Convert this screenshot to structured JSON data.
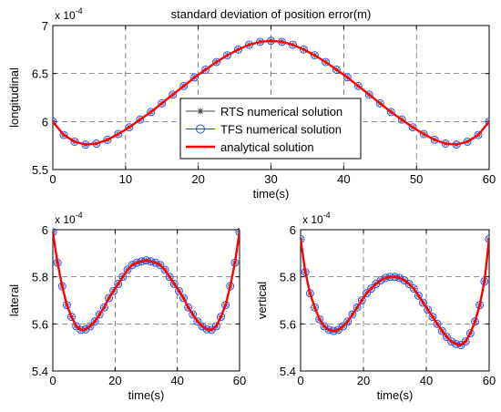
{
  "figure": {
    "background": "#ffffff"
  },
  "chart_data": [
    {
      "type": "line",
      "title": "standard deviation of position error(m)",
      "xlabel": "time(s)",
      "ylabel": "longitudinal",
      "exponent_label": "x 10",
      "exponent_power": "-4",
      "xlim": [
        0,
        60
      ],
      "ylim": [
        5.5,
        7
      ],
      "xticks": [
        0,
        10,
        20,
        30,
        40,
        50,
        60
      ],
      "yticks": [
        5.5,
        6,
        6.5,
        7
      ],
      "ytick_labels": [
        "5.5",
        "6",
        "6.5",
        "7"
      ],
      "grid": true,
      "legend_position": "center",
      "legend": [
        {
          "label": "RTS numerical solution",
          "color": "#444444",
          "marker": "asterisk"
        },
        {
          "label": "TFS numerical solution",
          "color": "#1f3fff",
          "marker": "circle"
        },
        {
          "label": "analytical solution",
          "color": "#ff0000",
          "marker": "none"
        }
      ],
      "series": [
        {
          "name": "RTS numerical solution",
          "color": "#444444",
          "x": [
            0,
            1.5,
            3,
            4.5,
            6,
            7.5,
            9,
            10.5,
            12,
            13.5,
            15,
            16.5,
            18,
            19.5,
            21,
            22.5,
            24,
            25.5,
            27,
            28.5,
            30,
            31.5,
            33,
            34.5,
            36,
            37.5,
            39,
            40.5,
            42,
            43.5,
            45,
            46.5,
            48,
            49.5,
            51,
            52.5,
            54,
            55.5,
            57,
            58.5,
            60
          ],
          "y": [
            6.0,
            5.86,
            5.79,
            5.76,
            5.77,
            5.81,
            5.87,
            5.94,
            6.02,
            6.1,
            6.19,
            6.28,
            6.37,
            6.46,
            6.54,
            6.62,
            6.69,
            6.75,
            6.8,
            6.83,
            6.84,
            6.83,
            6.8,
            6.75,
            6.69,
            6.62,
            6.54,
            6.46,
            6.37,
            6.28,
            6.19,
            6.1,
            6.02,
            5.94,
            5.87,
            5.81,
            5.77,
            5.76,
            5.79,
            5.86,
            6.0
          ]
        },
        {
          "name": "TFS numerical solution",
          "color": "#1f3fff",
          "x": [
            0,
            1.5,
            3,
            4.5,
            6,
            7.5,
            9,
            10.5,
            12,
            13.5,
            15,
            16.5,
            18,
            19.5,
            21,
            22.5,
            24,
            25.5,
            27,
            28.5,
            30,
            31.5,
            33,
            34.5,
            36,
            37.5,
            39,
            40.5,
            42,
            43.5,
            45,
            46.5,
            48,
            49.5,
            51,
            52.5,
            54,
            55.5,
            57,
            58.5,
            60
          ],
          "y": [
            6.0,
            5.86,
            5.79,
            5.76,
            5.77,
            5.81,
            5.87,
            5.94,
            6.02,
            6.1,
            6.19,
            6.28,
            6.37,
            6.46,
            6.54,
            6.62,
            6.69,
            6.75,
            6.8,
            6.83,
            6.84,
            6.83,
            6.8,
            6.75,
            6.69,
            6.62,
            6.54,
            6.46,
            6.37,
            6.28,
            6.19,
            6.1,
            6.02,
            5.94,
            5.87,
            5.81,
            5.77,
            5.76,
            5.79,
            5.86,
            6.0
          ]
        },
        {
          "name": "analytical solution",
          "color": "#ff0000",
          "x": [
            0,
            1.5,
            3,
            4.5,
            6,
            7.5,
            9,
            10.5,
            12,
            13.5,
            15,
            16.5,
            18,
            19.5,
            21,
            22.5,
            24,
            25.5,
            27,
            28.5,
            30,
            31.5,
            33,
            34.5,
            36,
            37.5,
            39,
            40.5,
            42,
            43.5,
            45,
            46.5,
            48,
            49.5,
            51,
            52.5,
            54,
            55.5,
            57,
            58.5,
            60
          ],
          "y": [
            6.0,
            5.86,
            5.79,
            5.76,
            5.77,
            5.81,
            5.87,
            5.94,
            6.02,
            6.1,
            6.19,
            6.28,
            6.37,
            6.46,
            6.54,
            6.62,
            6.69,
            6.75,
            6.8,
            6.83,
            6.84,
            6.83,
            6.8,
            6.75,
            6.69,
            6.62,
            6.54,
            6.46,
            6.37,
            6.28,
            6.19,
            6.1,
            6.02,
            5.94,
            5.87,
            5.81,
            5.77,
            5.76,
            5.79,
            5.86,
            6.0
          ]
        }
      ]
    },
    {
      "type": "line",
      "title": "",
      "xlabel": "time(s)",
      "ylabel": "lateral",
      "exponent_label": "x 10",
      "exponent_power": "-4",
      "xlim": [
        0,
        60
      ],
      "ylim": [
        5.4,
        6
      ],
      "xticks": [
        0,
        20,
        40,
        60
      ],
      "yticks": [
        5.4,
        5.6,
        5.8,
        6
      ],
      "ytick_labels": [
        "5.4",
        "5.6",
        "5.8",
        "6"
      ],
      "grid": true,
      "series": [
        {
          "name": "RTS numerical solution",
          "color": "#444444",
          "x": [
            0,
            1.5,
            3,
            4.5,
            6,
            7.5,
            9,
            10.5,
            12,
            13.5,
            15,
            16.5,
            18,
            19.5,
            21,
            22.5,
            24,
            25.5,
            27,
            28.5,
            30,
            31.5,
            33,
            34.5,
            36,
            37.5,
            39,
            40.5,
            42,
            43.5,
            45,
            46.5,
            48,
            49.5,
            51,
            52.5,
            54,
            55.5,
            57,
            58.5,
            60
          ],
          "y": [
            5.99,
            5.86,
            5.76,
            5.68,
            5.63,
            5.59,
            5.575,
            5.577,
            5.59,
            5.61,
            5.64,
            5.67,
            5.71,
            5.74,
            5.77,
            5.8,
            5.83,
            5.85,
            5.86,
            5.865,
            5.87,
            5.865,
            5.86,
            5.85,
            5.83,
            5.8,
            5.77,
            5.74,
            5.71,
            5.67,
            5.64,
            5.61,
            5.59,
            5.577,
            5.575,
            5.59,
            5.63,
            5.68,
            5.76,
            5.86,
            5.99
          ]
        },
        {
          "name": "TFS numerical solution",
          "color": "#1f3fff",
          "x": [
            0,
            1.5,
            3,
            4.5,
            6,
            7.5,
            9,
            10.5,
            12,
            13.5,
            15,
            16.5,
            18,
            19.5,
            21,
            22.5,
            24,
            25.5,
            27,
            28.5,
            30,
            31.5,
            33,
            34.5,
            36,
            37.5,
            39,
            40.5,
            42,
            43.5,
            45,
            46.5,
            48,
            49.5,
            51,
            52.5,
            54,
            55.5,
            57,
            58.5,
            60
          ],
          "y": [
            5.99,
            5.86,
            5.76,
            5.68,
            5.63,
            5.59,
            5.575,
            5.577,
            5.59,
            5.61,
            5.64,
            5.67,
            5.71,
            5.74,
            5.77,
            5.8,
            5.83,
            5.85,
            5.86,
            5.865,
            5.87,
            5.865,
            5.86,
            5.85,
            5.83,
            5.8,
            5.77,
            5.74,
            5.71,
            5.67,
            5.64,
            5.61,
            5.59,
            5.577,
            5.575,
            5.59,
            5.63,
            5.68,
            5.76,
            5.86,
            5.99
          ]
        },
        {
          "name": "analytical solution",
          "color": "#ff0000",
          "x": [
            0,
            1.5,
            3,
            4.5,
            6,
            7.5,
            9,
            10.5,
            12,
            13.5,
            15,
            16.5,
            18,
            19.5,
            21,
            22.5,
            24,
            25.5,
            27,
            28.5,
            30,
            31.5,
            33,
            34.5,
            36,
            37.5,
            39,
            40.5,
            42,
            43.5,
            45,
            46.5,
            48,
            49.5,
            51,
            52.5,
            54,
            55.5,
            57,
            58.5,
            60
          ],
          "y": [
            5.99,
            5.86,
            5.76,
            5.68,
            5.63,
            5.59,
            5.575,
            5.577,
            5.59,
            5.61,
            5.64,
            5.67,
            5.71,
            5.74,
            5.77,
            5.8,
            5.83,
            5.85,
            5.86,
            5.865,
            5.87,
            5.865,
            5.86,
            5.85,
            5.83,
            5.8,
            5.77,
            5.74,
            5.71,
            5.67,
            5.64,
            5.61,
            5.59,
            5.577,
            5.575,
            5.59,
            5.63,
            5.68,
            5.76,
            5.86,
            5.99
          ]
        }
      ]
    },
    {
      "type": "line",
      "title": "",
      "xlabel": "time(s)",
      "ylabel": "vertical",
      "exponent_label": "x 10",
      "exponent_power": "-4",
      "xlim": [
        0,
        60
      ],
      "ylim": [
        5.4,
        6
      ],
      "xticks": [
        0,
        20,
        40,
        60
      ],
      "yticks": [
        5.4,
        5.6,
        5.8,
        6
      ],
      "ytick_labels": [
        "5.4",
        "5.6",
        "5.8",
        "6"
      ],
      "grid": true,
      "series": [
        {
          "name": "RTS numerical solution",
          "color": "#444444",
          "x": [
            0,
            1.5,
            3,
            4.5,
            6,
            7.5,
            9,
            10.5,
            12,
            13.5,
            15,
            16.5,
            18,
            19.5,
            21,
            22.5,
            24,
            25.5,
            27,
            28.5,
            30,
            31.5,
            33,
            34.5,
            36,
            37.5,
            39,
            40.5,
            42,
            43.5,
            45,
            46.5,
            48,
            49.5,
            51,
            52.5,
            54,
            55.5,
            57,
            58.5,
            60
          ],
          "y": [
            5.96,
            5.82,
            5.73,
            5.67,
            5.62,
            5.59,
            5.575,
            5.57,
            5.575,
            5.59,
            5.61,
            5.64,
            5.67,
            5.7,
            5.73,
            5.75,
            5.77,
            5.785,
            5.795,
            5.8,
            5.8,
            5.795,
            5.785,
            5.77,
            5.75,
            5.72,
            5.69,
            5.66,
            5.63,
            5.6,
            5.57,
            5.545,
            5.525,
            5.515,
            5.51,
            5.525,
            5.56,
            5.61,
            5.68,
            5.78,
            5.96
          ]
        },
        {
          "name": "TFS numerical solution",
          "color": "#1f3fff",
          "x": [
            0,
            1.5,
            3,
            4.5,
            6,
            7.5,
            9,
            10.5,
            12,
            13.5,
            15,
            16.5,
            18,
            19.5,
            21,
            22.5,
            24,
            25.5,
            27,
            28.5,
            30,
            31.5,
            33,
            34.5,
            36,
            37.5,
            39,
            40.5,
            42,
            43.5,
            45,
            46.5,
            48,
            49.5,
            51,
            52.5,
            54,
            55.5,
            57,
            58.5,
            60
          ],
          "y": [
            5.96,
            5.82,
            5.73,
            5.67,
            5.62,
            5.59,
            5.575,
            5.57,
            5.575,
            5.59,
            5.61,
            5.64,
            5.67,
            5.7,
            5.73,
            5.75,
            5.77,
            5.785,
            5.795,
            5.8,
            5.8,
            5.795,
            5.785,
            5.77,
            5.75,
            5.72,
            5.69,
            5.66,
            5.63,
            5.6,
            5.57,
            5.545,
            5.525,
            5.515,
            5.51,
            5.525,
            5.56,
            5.61,
            5.68,
            5.78,
            5.96
          ]
        },
        {
          "name": "analytical solution",
          "color": "#ff0000",
          "x": [
            0,
            1.5,
            3,
            4.5,
            6,
            7.5,
            9,
            10.5,
            12,
            13.5,
            15,
            16.5,
            18,
            19.5,
            21,
            22.5,
            24,
            25.5,
            27,
            28.5,
            30,
            31.5,
            33,
            34.5,
            36,
            37.5,
            39,
            40.5,
            42,
            43.5,
            45,
            46.5,
            48,
            49.5,
            51,
            52.5,
            54,
            55.5,
            57,
            58.5,
            60
          ],
          "y": [
            5.96,
            5.82,
            5.73,
            5.67,
            5.62,
            5.59,
            5.575,
            5.57,
            5.575,
            5.59,
            5.61,
            5.64,
            5.67,
            5.7,
            5.73,
            5.75,
            5.77,
            5.785,
            5.795,
            5.8,
            5.8,
            5.795,
            5.785,
            5.77,
            5.75,
            5.72,
            5.69,
            5.66,
            5.63,
            5.6,
            5.57,
            5.545,
            5.525,
            5.515,
            5.51,
            5.525,
            5.56,
            5.61,
            5.68,
            5.78,
            5.96
          ]
        }
      ]
    }
  ]
}
